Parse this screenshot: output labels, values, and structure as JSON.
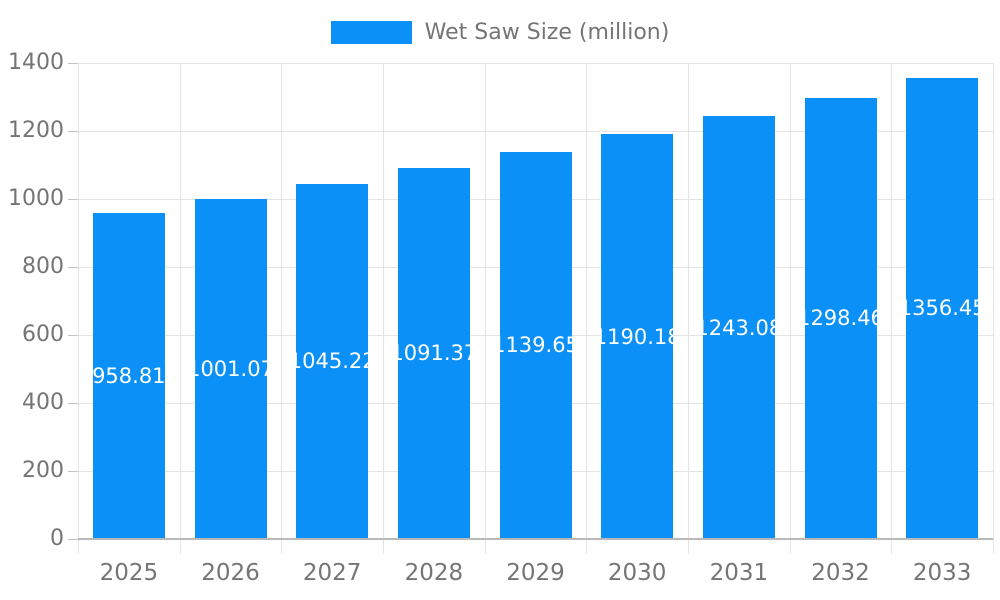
{
  "legend": {
    "label": "Wet Saw Size (million)",
    "swatch_color": "#0b90f8"
  },
  "chart_data": {
    "type": "bar",
    "title": "Wet Saw Size (million)",
    "categories": [
      "2025",
      "2026",
      "2027",
      "2028",
      "2029",
      "2030",
      "2031",
      "2032",
      "2033"
    ],
    "series": [
      {
        "name": "Wet Saw Size (million)",
        "values": [
          958.81,
          1001.07,
          1045.22,
          1091.37,
          1139.65,
          1190.18,
          1243.08,
          1298.46,
          1356.45
        ]
      }
    ],
    "value_labels": [
      "958.81",
      "1001.07",
      "1045.22",
      "1091.37",
      "1139.65",
      "1190.18",
      "1243.08",
      "1298.46",
      "1356.45"
    ],
    "xlabel": "",
    "ylabel": "",
    "ylim": [
      0,
      1400
    ],
    "ytick_step": 200,
    "ytick_labels": [
      "0",
      "200",
      "400",
      "600",
      "800",
      "1000",
      "1200",
      "1400"
    ],
    "grid": true,
    "legend_position": "top-center",
    "colors": {
      "bar": "#0b90f8",
      "bar_label_text": "#ffffff",
      "axis_text": "#757575",
      "legend_text": "#757575",
      "gridline": "#e4e4e4",
      "baseline": "#b9b9b9",
      "tick": "#c3c3c3"
    }
  }
}
